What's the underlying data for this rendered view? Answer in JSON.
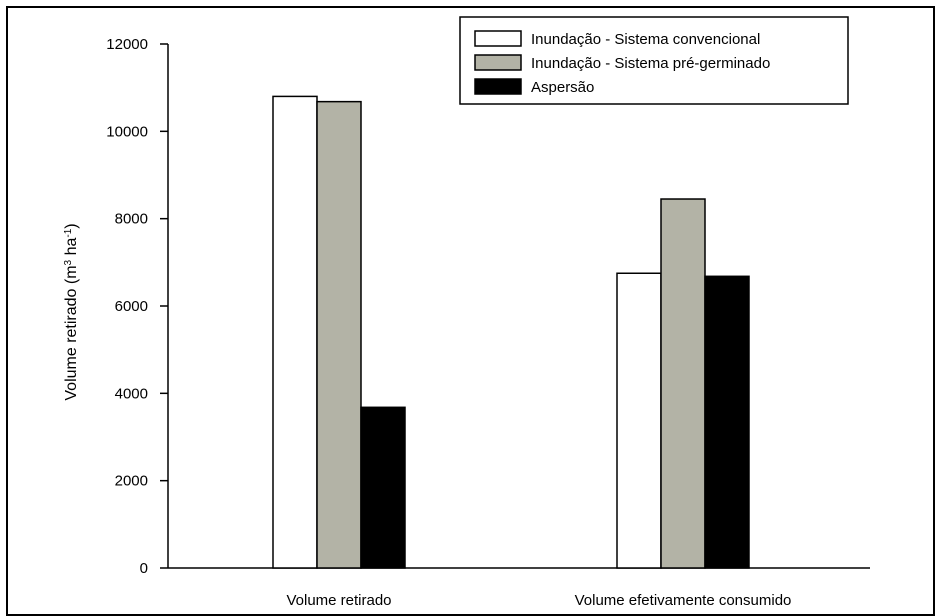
{
  "chart_data": {
    "type": "bar",
    "title": "",
    "xlabel": "",
    "ylabel": "Volume retirado (m",
    "ylabel_sup1": "3",
    "ylabel_mid": " ha",
    "ylabel_sup2": "-1",
    "ylabel_end": ")",
    "categories": [
      "Volume retirado",
      "Volume efetivamente consumido"
    ],
    "ylim": [
      0,
      12000
    ],
    "yticks": [
      0,
      2000,
      4000,
      6000,
      8000,
      10000,
      12000
    ],
    "ytick_labels": [
      "0",
      "2000",
      "4000",
      "6000",
      "8000",
      "10000",
      "12000"
    ],
    "grid": false,
    "legend_position": "top-right",
    "series": [
      {
        "name": "Inundação - Sistema convencional",
        "color": "#ffffff",
        "values": [
          10800,
          6750
        ]
      },
      {
        "name": "Inundação - Sistema pré-germinado",
        "color": "#b3b3a6",
        "values": [
          10680,
          8450
        ]
      },
      {
        "name": "Aspersão",
        "color": "#000000",
        "values": [
          3680,
          6680
        ]
      }
    ]
  }
}
